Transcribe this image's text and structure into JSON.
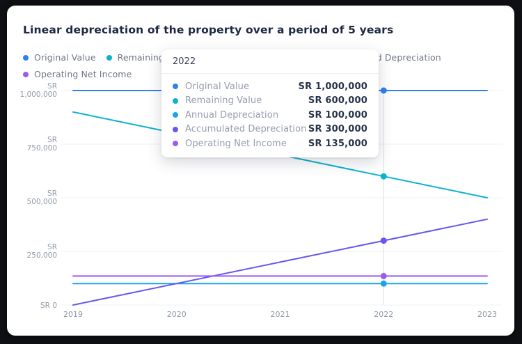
{
  "title": "Linear depreciation of the property over a period of 5 years",
  "chart_data": {
    "type": "line",
    "title": "Linear depreciation of the property over a period of 5 years",
    "x": [
      "2019",
      "2020",
      "2021",
      "2022",
      "2023"
    ],
    "series": [
      {
        "name": "Original Value",
        "color": "#2e7ff0",
        "values": [
          1000000,
          1000000,
          1000000,
          1000000,
          1000000
        ]
      },
      {
        "name": "Remaining Value",
        "color": "#0cb2cf",
        "values": [
          900000,
          800000,
          700000,
          600000,
          500000
        ]
      },
      {
        "name": "Annual Depreciation",
        "color": "#18a6f0",
        "values": [
          100000,
          100000,
          100000,
          100000,
          100000
        ]
      },
      {
        "name": "Accumulated Depreciation",
        "color": "#6557f2",
        "values": [
          0,
          100000,
          200000,
          300000,
          400000
        ]
      },
      {
        "name": "Operating Net Income",
        "color": "#9a5cf6",
        "values": [
          135000,
          135000,
          135000,
          135000,
          135000
        ]
      }
    ],
    "ylim": [
      0,
      1000000
    ],
    "y_ticks": [
      {
        "value": 0,
        "line1": "SR 0",
        "line2": ""
      },
      {
        "value": 250000,
        "line1": "SR",
        "line2": "250,000"
      },
      {
        "value": 500000,
        "line1": "SR",
        "line2": "500,000"
      },
      {
        "value": 750000,
        "line1": "SR",
        "line2": "750,000"
      },
      {
        "value": 1000000,
        "line1": "SR",
        "line2": "1,000,000"
      }
    ],
    "grid": "horizontal",
    "legend_position": "top",
    "hover_index": 3,
    "layout": {
      "grid_color": "#edf0f4",
      "crosshair_color": "#d9dde3",
      "axis_text_color": "#8f99a8"
    }
  },
  "tooltip": {
    "title": "2022",
    "rows": [
      {
        "label": "Original Value",
        "value": "SR 1,000,000"
      },
      {
        "label": "Remaining Value",
        "value": "SR 600,000"
      },
      {
        "label": "Annual Depreciation",
        "value": "SR 100,000"
      },
      {
        "label": "Accumulated Depreciation",
        "value": "SR 300,000"
      },
      {
        "label": "Operating Net Income",
        "value": "SR 135,000"
      }
    ]
  }
}
